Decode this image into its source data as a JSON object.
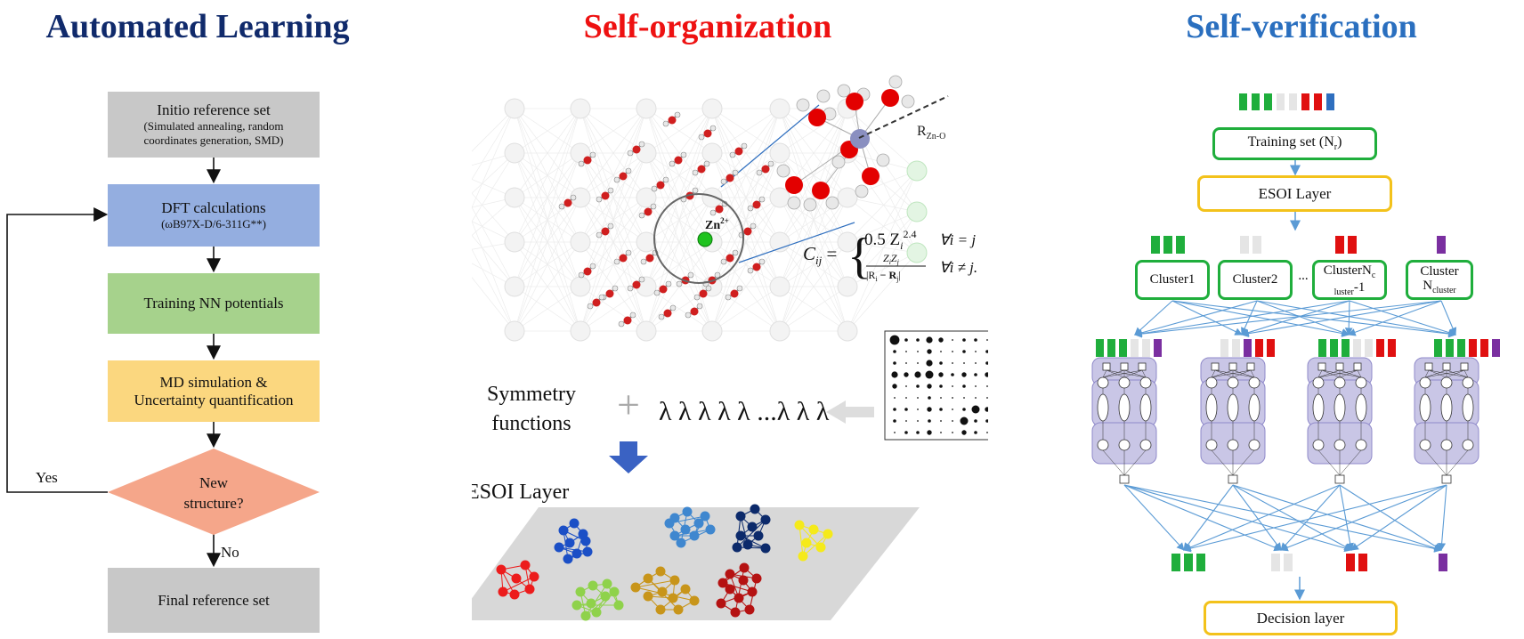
{
  "titles": {
    "left": "Automated Learning",
    "middle": "Self-organization",
    "right": "Self-verification"
  },
  "colors": {
    "left_title": "#102a6b",
    "middle_title": "#ee1111",
    "right_title": "#2a6fbf",
    "green": "#1fae3c",
    "light": "#e5e5e5",
    "red": "#e01010",
    "blue": "#2f6fbf",
    "purple": "#7a2fa0"
  },
  "flow": {
    "initio_title": "Initio reference set",
    "initio_sub": "(Simulated annealing, random coordinates generation, SMD)",
    "dft_title": "DFT calculations",
    "dft_sub": "(ωB97X-D/6-311G**)",
    "training": "Training NN potentials",
    "md_line1": "MD simulation &",
    "md_line2": "Uncertainty quantification",
    "decision_line1": "New",
    "decision_line2": "structure?",
    "yes": "Yes",
    "no": "No",
    "final": "Final reference set"
  },
  "middle": {
    "zn_label": "Zn",
    "zn_charge": "2+",
    "r_label": "R",
    "r_sub": "Zn-O",
    "cij": "C",
    "cij_sub": "ij",
    "eq_top": "0.5 Z",
    "eq_top_sub": "i",
    "eq_top_sup": "2.4",
    "eq_top_cond": "∀i = j",
    "eq_num": "Z",
    "eq_num_sub1": "i",
    "eq_num_mid": "Z",
    "eq_num_sub2": "j",
    "eq_den": "|R",
    "eq_den_sub1": "i",
    "eq_den_mid": " − R",
    "eq_den_sub2": "j",
    "eq_den_end": "|",
    "eq_bot_cond": "∀i ≠ j.",
    "sym_line1": "Symmetry",
    "sym_line2": "functions",
    "plus": "+",
    "lambdas": "λ λ λ λ λ ...λ λ λ",
    "esoi": "ESOI Layer"
  },
  "right": {
    "training_set": "Training set (N",
    "training_set_sub": "r",
    "training_set_end": ")",
    "esoi": "ESOI Layer",
    "cluster1": "Cluster1",
    "cluster2": "Cluster2",
    "ellipsis": "...",
    "clusternc": "ClusterN",
    "clusternc_sub": "c",
    "clusternc_line2_sub": "luster",
    "clusternc_line2_end": "-1",
    "cluster_last": "Cluster",
    "cluster_last_line2": "N",
    "cluster_last_line2_sub": "cluster",
    "decision": "Decision layer"
  }
}
